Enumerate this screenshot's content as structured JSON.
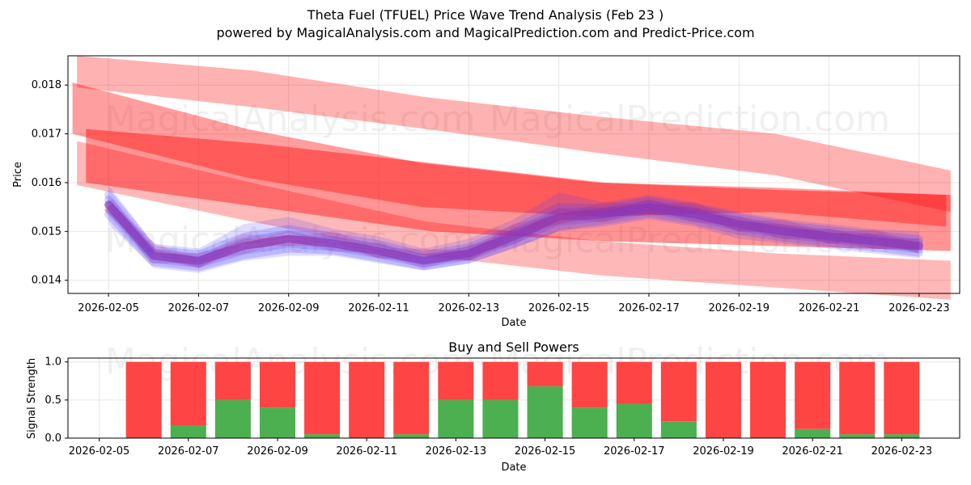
{
  "title": "Theta Fuel (TFUEL) Price Wave Trend Analysis (Feb 23 )",
  "subtitle": "powered by MagicalAnalysis.com and MagicalPrediction.com and Predict-Price.com",
  "watermarks": [
    "MagicalAnalysis.com",
    "MagicalPrediction.com"
  ],
  "colors": {
    "red_band": "#ff0000",
    "blue_band": "#4b3bff",
    "buy": "#4caf50",
    "sell": "#ff4444",
    "grid": "#e6e6e6"
  },
  "chart_data": [
    {
      "type": "area",
      "xlabel": "Date",
      "ylabel": "Price",
      "x_ticks": [
        "2026-02-05",
        "2026-02-07",
        "2026-02-09",
        "2026-02-11",
        "2026-02-13",
        "2026-02-15",
        "2026-02-17",
        "2026-02-19",
        "2026-02-21",
        "2026-02-23"
      ],
      "y_ticks": [
        "0.014",
        "0.015",
        "0.016",
        "0.017",
        "0.018"
      ],
      "xlim": [
        -0.9,
        18.9
      ],
      "ylim": [
        0.01373,
        0.0186
      ],
      "red_bands": [
        {
          "start": -0.7,
          "end": 18.7,
          "top": [
            0.0186,
            0.0183,
            0.01775,
            0.01735,
            0.017,
            0.01625
          ],
          "bottom": [
            0.01795,
            0.01755,
            0.0171,
            0.0166,
            0.01615,
            0.0154
          ],
          "opacity": 0.3
        },
        {
          "start": -0.8,
          "end": 18.6,
          "top": [
            0.01805,
            0.0171,
            0.0164,
            0.016,
            0.0159,
            0.01575
          ],
          "bottom": [
            0.017,
            0.0161,
            0.0155,
            0.0153,
            0.0154,
            0.0151
          ],
          "opacity": 0.38
        },
        {
          "start": -0.5,
          "end": 18.7,
          "top": [
            0.0171,
            0.0168,
            0.0164,
            0.016,
            0.01585,
            0.01575
          ],
          "bottom": [
            0.016,
            0.0155,
            0.015,
            0.0148,
            0.0147,
            0.0146
          ],
          "opacity": 0.42
        },
        {
          "start": -0.7,
          "end": 18.7,
          "top": [
            0.01685,
            0.016,
            0.0152,
            0.0148,
            0.01455,
            0.0144
          ],
          "bottom": [
            0.01595,
            0.0152,
            0.0145,
            0.0141,
            0.01385,
            0.0136
          ],
          "opacity": 0.28
        }
      ],
      "wave_dates": [
        "2026-02-05",
        "2026-02-06",
        "2026-02-07",
        "2026-02-08",
        "2026-02-09",
        "2026-02-10",
        "2026-02-11",
        "2026-02-12",
        "2026-02-13",
        "2026-02-14",
        "2026-02-15",
        "2026-02-16",
        "2026-02-17",
        "2026-02-18",
        "2026-02-19",
        "2026-02-20",
        "2026-02-21",
        "2026-02-22",
        "2026-02-23"
      ],
      "wave_center": [
        0.01555,
        0.0145,
        0.0144,
        0.0147,
        0.01485,
        0.01475,
        0.0146,
        0.0144,
        0.01455,
        0.0149,
        0.0153,
        0.01535,
        0.0155,
        0.01535,
        0.01515,
        0.015,
        0.0149,
        0.0148,
        0.0147
      ],
      "wave_upper": [
        0.01595,
        0.01475,
        0.01465,
        0.01515,
        0.0153,
        0.01505,
        0.0149,
        0.01465,
        0.01485,
        0.01525,
        0.0158,
        0.0156,
        0.01575,
        0.0156,
        0.0154,
        0.01525,
        0.01515,
        0.01505,
        0.015
      ],
      "wave_lower": [
        0.01515,
        0.01425,
        0.01415,
        0.0144,
        0.0145,
        0.0145,
        0.01435,
        0.0142,
        0.01435,
        0.01465,
        0.015,
        0.0151,
        0.01525,
        0.0151,
        0.01485,
        0.01475,
        0.01465,
        0.01455,
        0.01445
      ]
    },
    {
      "type": "bar",
      "title": "Buy and Sell Powers",
      "xlabel": "Date",
      "ylabel": "Signal Strength",
      "x_ticks": [
        "2026-02-05",
        "2026-02-07",
        "2026-02-09",
        "2026-02-11",
        "2026-02-13",
        "2026-02-15",
        "2026-02-17",
        "2026-02-19",
        "2026-02-21",
        "2026-02-23"
      ],
      "y_ticks": [
        "0.0",
        "0.5",
        "1.0"
      ],
      "xlim": [
        -0.7,
        19.3
      ],
      "ylim": [
        0,
        1.05
      ],
      "categories": [
        "2026-02-06",
        "2026-02-07",
        "2026-02-08",
        "2026-02-09",
        "2026-02-10",
        "2026-02-11",
        "2026-02-12",
        "2026-02-13",
        "2026-02-14",
        "2026-02-15",
        "2026-02-16",
        "2026-02-17",
        "2026-02-18",
        "2026-02-19",
        "2026-02-20",
        "2026-02-21",
        "2026-02-22",
        "2026-02-23"
      ],
      "series": [
        {
          "name": "Buy",
          "values": [
            0.0,
            0.17,
            0.5,
            0.4,
            0.05,
            0.0,
            0.05,
            0.5,
            0.5,
            0.68,
            0.4,
            0.45,
            0.22,
            0.0,
            0.0,
            0.12,
            0.05,
            0.05
          ]
        },
        {
          "name": "Sell",
          "values": [
            1.0,
            0.83,
            0.5,
            0.6,
            0.95,
            1.0,
            0.95,
            0.5,
            0.5,
            0.32,
            0.6,
            0.55,
            0.78,
            1.0,
            1.0,
            0.88,
            0.95,
            0.95
          ]
        }
      ]
    }
  ]
}
